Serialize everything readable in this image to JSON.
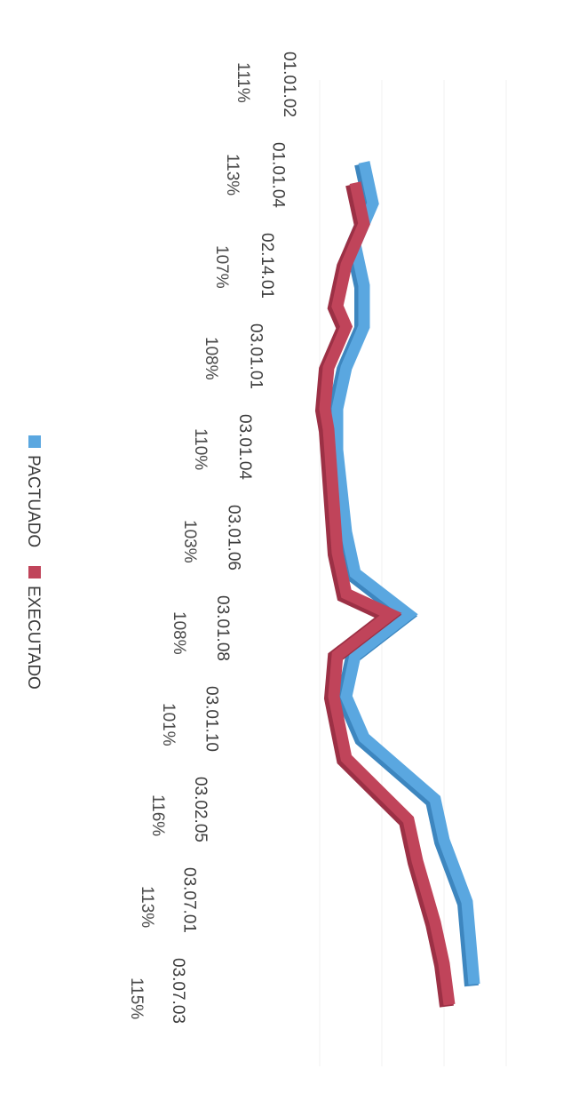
{
  "chart_data": {
    "type": "line",
    "orientation": "rotated-90",
    "categories": [
      "01.01.02",
      "01.01.04",
      "02.14.01",
      "03.01.01",
      "03.01.04",
      "03.01.06",
      "03.01.08",
      "03.01.10",
      "03.02.05",
      "03.07.01",
      "03.07.03"
    ],
    "category_percent_labels": [
      "111%",
      "113%",
      "107%",
      "108%",
      "110%",
      "103%",
      "108%",
      "101%",
      "116%",
      "113%",
      "115%"
    ],
    "series": [
      {
        "name": "PACTUADO",
        "color": "#5aa7e0",
        "values": [
          [
            2,
            10.5
          ],
          [
            3,
            11
          ],
          [
            4,
            10
          ],
          [
            5,
            10.5
          ],
          [
            6,
            10.5
          ],
          [
            7,
            9.5
          ],
          [
            8,
            9
          ],
          [
            9,
            9
          ],
          [
            11,
            9.5
          ],
          [
            12,
            10
          ],
          [
            13,
            13
          ],
          [
            14,
            10
          ],
          [
            15,
            9.5
          ],
          [
            16,
            10.5
          ],
          [
            17.5,
            14.5
          ],
          [
            18.5,
            15
          ],
          [
            20,
            16.3
          ],
          [
            21,
            16.5
          ],
          [
            22,
            16.7
          ]
        ]
      },
      {
        "name": "EXECUTADO",
        "color": "#c0445a",
        "values": [
          [
            2.5,
            10
          ],
          [
            3.5,
            10.5
          ],
          [
            4.5,
            9.5
          ],
          [
            5.5,
            9
          ],
          [
            6,
            9.5
          ],
          [
            7,
            8.5
          ],
          [
            8,
            8.3
          ],
          [
            8.5,
            8.5
          ],
          [
            11.5,
            9
          ],
          [
            12.5,
            9.5
          ],
          [
            13,
            12
          ],
          [
            14,
            9
          ],
          [
            15,
            8.8
          ],
          [
            16.5,
            9.5
          ],
          [
            18,
            13
          ],
          [
            19,
            13.5
          ],
          [
            20.5,
            14.5
          ],
          [
            21.5,
            15
          ],
          [
            22.5,
            15.3
          ]
        ]
      }
    ],
    "legend": {
      "position": "bottom",
      "items": [
        {
          "label": "PACTUADO",
          "color": "#5aa7e0"
        },
        {
          "label": "EXECUTADO",
          "color": "#c0445a"
        }
      ]
    },
    "grid": true
  }
}
